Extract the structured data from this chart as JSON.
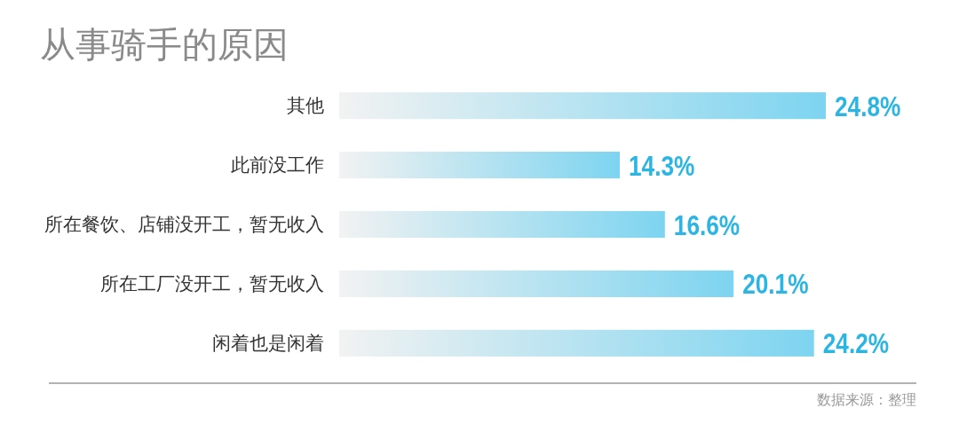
{
  "chart_data": {
    "type": "bar",
    "orientation": "horizontal",
    "title": "从事骑手的原因",
    "categories": [
      "其他",
      "此前没工作",
      "所在餐饮、店铺没开工，暂无收入",
      "所在工厂没开工，暂无收入",
      "闲着也是闲着"
    ],
    "values": [
      24.8,
      14.3,
      16.6,
      20.1,
      24.2
    ],
    "value_labels": [
      "24.8%",
      "14.3%",
      "16.6%",
      "20.1%",
      "24.2%"
    ],
    "color": "#7dd4f0",
    "annotations": [
      "数据来源：整理"
    ]
  }
}
